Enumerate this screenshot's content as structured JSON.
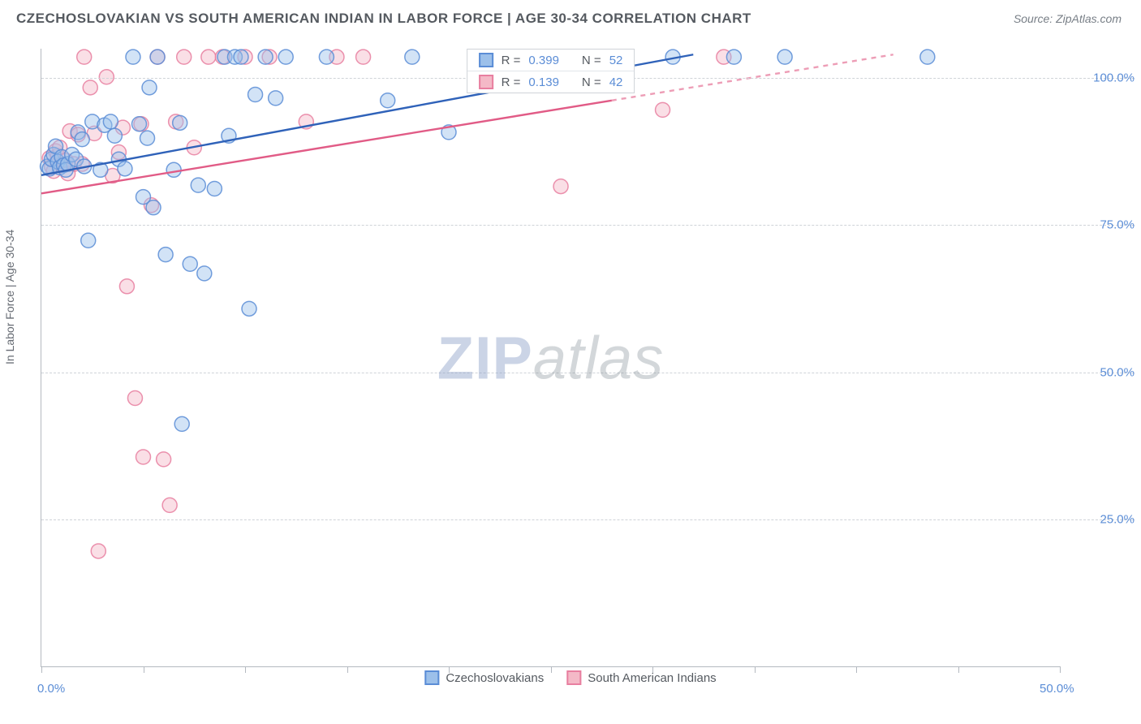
{
  "title": "CZECHOSLOVAKIAN VS SOUTH AMERICAN INDIAN IN LABOR FORCE | AGE 30-34 CORRELATION CHART",
  "source_label": "Source: ZipAtlas.com",
  "y_axis_title": "In Labor Force | Age 30-34",
  "watermark": {
    "part1": "ZIP",
    "part2": "atlas"
  },
  "chart": {
    "type": "scatter",
    "x_domain": [
      0,
      50
    ],
    "y_domain": [
      0,
      105
    ],
    "y_ticks": [
      25,
      50,
      75,
      100
    ],
    "y_tick_labels": [
      "25.0%",
      "50.0%",
      "75.0%",
      "100.0%"
    ],
    "x_ticks_minor": [
      0,
      5,
      10,
      15,
      20,
      25,
      30,
      35,
      40,
      45,
      50
    ],
    "x_tick_labels": {
      "0": "0.0%",
      "50": "50.0%"
    },
    "marker_radius": 9,
    "marker_opacity": 0.45,
    "marker_stroke_opacity": 0.85,
    "line_width": 2.4,
    "background_color": "#ffffff",
    "grid_color": "#cfd3d8",
    "axis_color": "#b4b9c0",
    "tick_label_color": "#5b8dd6",
    "series_a": {
      "name": "Czechoslovakians",
      "color_fill": "#9cc0ea",
      "color_stroke": "#5b8dd6",
      "line_color": "#2f62b9",
      "r": "0.399",
      "n": "52",
      "trend": {
        "x1": 0,
        "y1": 83.5,
        "x2": 32,
        "y2": 104,
        "dash_after_x": 32
      },
      "points": [
        [
          0.3,
          85.0
        ],
        [
          0.4,
          84.6
        ],
        [
          0.5,
          86.2
        ],
        [
          0.6,
          87.0
        ],
        [
          0.7,
          88.4
        ],
        [
          0.8,
          85.8
        ],
        [
          0.9,
          84.8
        ],
        [
          1.0,
          86.6
        ],
        [
          1.1,
          85.2
        ],
        [
          1.2,
          84.4
        ],
        [
          1.3,
          85.4
        ],
        [
          1.5,
          87.0
        ],
        [
          1.7,
          86.2
        ],
        [
          1.8,
          90.8
        ],
        [
          2.0,
          89.6
        ],
        [
          2.1,
          85.0
        ],
        [
          2.3,
          72.4
        ],
        [
          2.5,
          92.6
        ],
        [
          2.9,
          84.4
        ],
        [
          3.1,
          92.0
        ],
        [
          3.4,
          92.6
        ],
        [
          3.6,
          90.2
        ],
        [
          3.8,
          86.2
        ],
        [
          4.1,
          84.6
        ],
        [
          4.5,
          103.6
        ],
        [
          4.8,
          92.2
        ],
        [
          5.0,
          79.8
        ],
        [
          5.2,
          89.8
        ],
        [
          5.3,
          98.4
        ],
        [
          5.5,
          78.0
        ],
        [
          5.7,
          103.6
        ],
        [
          6.1,
          70.0
        ],
        [
          6.5,
          84.4
        ],
        [
          6.8,
          92.4
        ],
        [
          6.9,
          41.2
        ],
        [
          7.3,
          68.4
        ],
        [
          7.7,
          81.8
        ],
        [
          8.0,
          66.8
        ],
        [
          8.5,
          81.2
        ],
        [
          9.0,
          103.6
        ],
        [
          9.2,
          90.2
        ],
        [
          9.5,
          103.6
        ],
        [
          9.8,
          103.6
        ],
        [
          10.2,
          60.8
        ],
        [
          10.5,
          97.2
        ],
        [
          11.0,
          103.6
        ],
        [
          11.5,
          96.6
        ],
        [
          12.0,
          103.6
        ],
        [
          14.0,
          103.6
        ],
        [
          17.0,
          96.2
        ],
        [
          18.2,
          103.6
        ],
        [
          20.0,
          90.8
        ]
      ]
    },
    "series_b": {
      "name": "South American Indians",
      "color_fill": "#f4b9c7",
      "color_stroke": "#e87fa0",
      "line_color": "#e15b86",
      "r": "0.139",
      "n": "42",
      "trend": {
        "x1": 0,
        "y1": 80.4,
        "x2": 28,
        "y2": 96.2,
        "dash_after_x": 28
      },
      "points": [
        [
          0.4,
          86.4
        ],
        [
          0.5,
          85.0
        ],
        [
          0.6,
          84.2
        ],
        [
          0.7,
          87.6
        ],
        [
          0.8,
          86.8
        ],
        [
          0.9,
          88.2
        ],
        [
          1.0,
          85.2
        ],
        [
          1.2,
          86.0
        ],
        [
          1.3,
          83.8
        ],
        [
          1.4,
          91.0
        ],
        [
          1.6,
          85.4
        ],
        [
          1.8,
          90.4
        ],
        [
          2.0,
          85.4
        ],
        [
          2.1,
          103.6
        ],
        [
          2.4,
          98.4
        ],
        [
          2.6,
          90.6
        ],
        [
          2.8,
          19.6
        ],
        [
          3.2,
          100.2
        ],
        [
          3.5,
          83.4
        ],
        [
          3.8,
          87.4
        ],
        [
          4.0,
          91.6
        ],
        [
          4.2,
          64.6
        ],
        [
          4.6,
          45.6
        ],
        [
          4.9,
          92.2
        ],
        [
          5.0,
          35.6
        ],
        [
          5.4,
          78.4
        ],
        [
          5.7,
          103.6
        ],
        [
          6.0,
          35.2
        ],
        [
          6.3,
          27.4
        ],
        [
          6.6,
          92.6
        ],
        [
          7.0,
          103.6
        ],
        [
          7.5,
          88.2
        ],
        [
          8.2,
          103.6
        ],
        [
          8.9,
          103.6
        ],
        [
          10.0,
          103.6
        ],
        [
          11.2,
          103.6
        ],
        [
          13.0,
          92.6
        ],
        [
          14.5,
          103.6
        ],
        [
          15.8,
          103.6
        ],
        [
          25.5,
          81.6
        ],
        [
          30.5,
          94.6
        ],
        [
          33.5,
          103.6
        ]
      ]
    },
    "extra_top_blue_points": [
      [
        31.0,
        103.6
      ],
      [
        34.0,
        103.6
      ],
      [
        36.5,
        103.6
      ],
      [
        43.5,
        103.6
      ]
    ]
  },
  "legend_top": {
    "r_label": "R =",
    "n_label": "N ="
  },
  "legend_bottom": {
    "label_a": "Czechoslovakians",
    "label_b": "South American Indians"
  }
}
